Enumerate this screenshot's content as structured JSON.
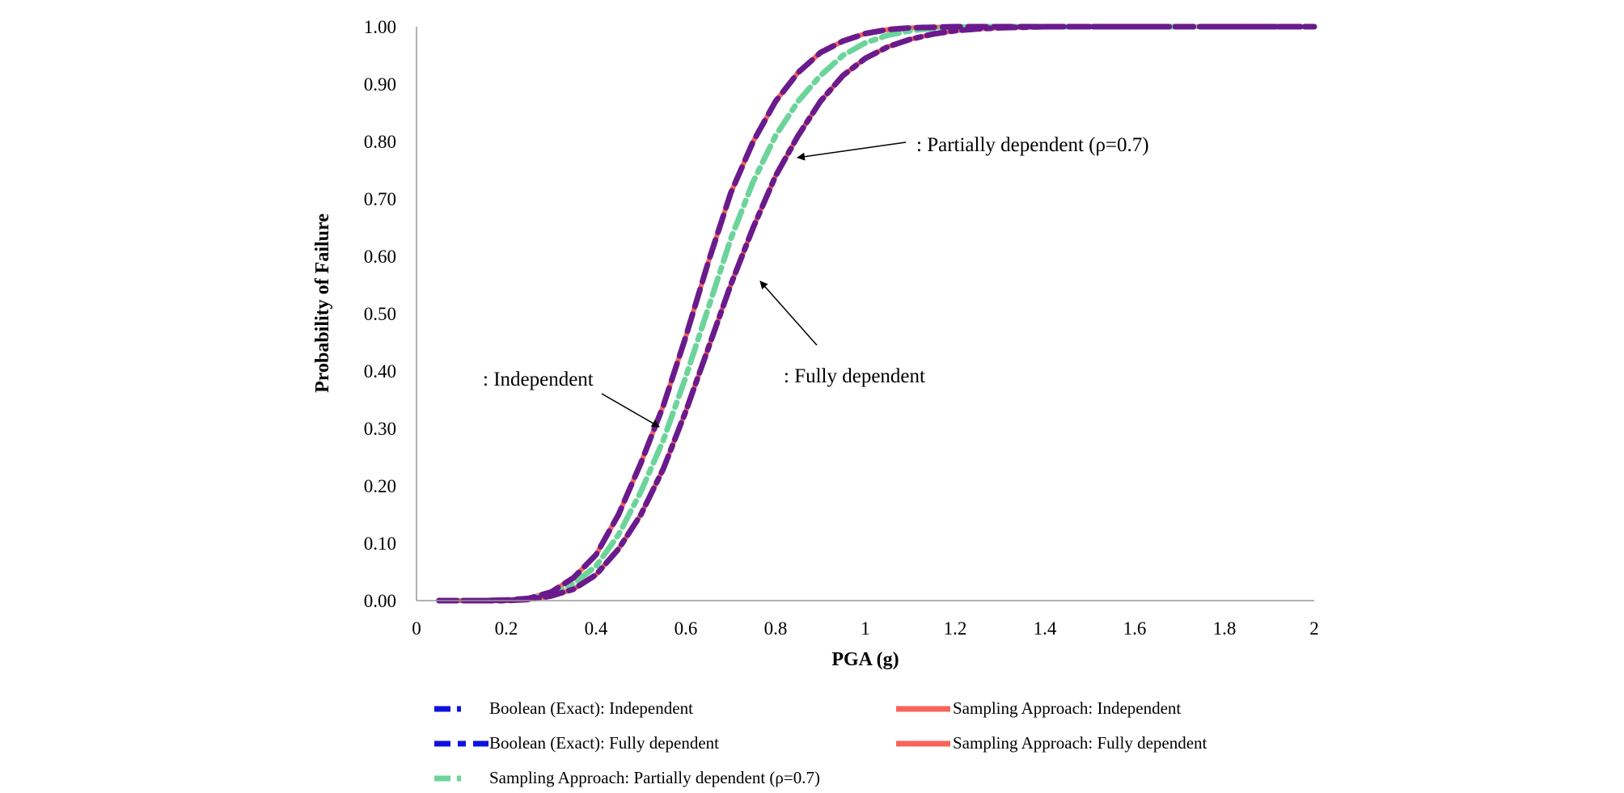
{
  "chart_data": {
    "type": "line",
    "title": "",
    "xlabel": "PGA (g)",
    "ylabel": "Probability  of Failure",
    "xlim": [
      0,
      2
    ],
    "ylim": [
      0,
      1
    ],
    "xticks": [
      "0",
      "0.2",
      "0.4",
      "0.6",
      "0.8",
      "1",
      "1.2",
      "1.4",
      "1.6",
      "1.8",
      "2"
    ],
    "yticks": [
      "0.00",
      "0.10",
      "0.20",
      "0.30",
      "0.40",
      "0.50",
      "0.60",
      "0.70",
      "0.80",
      "0.90",
      "1.00"
    ],
    "x": [
      0.05,
      0.1,
      0.15,
      0.2,
      0.25,
      0.3,
      0.35,
      0.4,
      0.45,
      0.5,
      0.55,
      0.6,
      0.65,
      0.7,
      0.75,
      0.8,
      0.85,
      0.9,
      0.95,
      1.0,
      1.05,
      1.1,
      1.15,
      1.2,
      1.25,
      1.3,
      1.35,
      1.4,
      1.5,
      1.6,
      1.7,
      1.8,
      1.9,
      2.0
    ],
    "series": [
      {
        "name": "Sampling Approach: Independent",
        "color": "#f8645a",
        "style": "solid",
        "values": [
          0.0,
          0.0,
          0.0,
          0.001,
          0.004,
          0.015,
          0.04,
          0.08,
          0.15,
          0.24,
          0.34,
          0.46,
          0.59,
          0.71,
          0.8,
          0.87,
          0.92,
          0.955,
          0.975,
          0.988,
          0.995,
          0.998,
          0.999,
          1.0,
          1.0,
          1.0,
          1.0,
          1.0,
          1.0,
          1.0,
          1.0,
          1.0,
          1.0,
          1.0
        ]
      },
      {
        "name": "Sampling Approach: Fully dependent",
        "color": "#f8645a",
        "style": "solid",
        "values": [
          0.0,
          0.0,
          0.0,
          0.0,
          0.002,
          0.008,
          0.02,
          0.045,
          0.09,
          0.15,
          0.23,
          0.33,
          0.44,
          0.55,
          0.65,
          0.74,
          0.81,
          0.87,
          0.915,
          0.945,
          0.965,
          0.978,
          0.987,
          0.993,
          0.996,
          0.998,
          0.999,
          1.0,
          1.0,
          1.0,
          1.0,
          1.0,
          1.0,
          1.0
        ]
      },
      {
        "name": "Sampling Approach: Partially dependent (ρ=0.7)",
        "color": "#6cd49a",
        "style": "dashdot",
        "values": [
          0.0,
          0.0,
          0.0,
          0.0,
          0.003,
          0.011,
          0.03,
          0.06,
          0.115,
          0.19,
          0.28,
          0.39,
          0.51,
          0.63,
          0.73,
          0.81,
          0.87,
          0.915,
          0.95,
          0.972,
          0.985,
          0.993,
          0.997,
          0.999,
          1.0,
          1.0,
          1.0,
          1.0,
          1.0,
          1.0,
          1.0,
          1.0,
          1.0,
          1.0
        ]
      },
      {
        "name": "Boolean (Exact): Independent",
        "color": "#6a1a8c",
        "style": "longdash",
        "values": [
          0.0,
          0.0,
          0.0,
          0.001,
          0.004,
          0.015,
          0.04,
          0.08,
          0.15,
          0.24,
          0.34,
          0.46,
          0.59,
          0.71,
          0.8,
          0.87,
          0.92,
          0.955,
          0.975,
          0.988,
          0.995,
          0.998,
          0.999,
          1.0,
          1.0,
          1.0,
          1.0,
          1.0,
          1.0,
          1.0,
          1.0,
          1.0,
          1.0,
          1.0
        ]
      },
      {
        "name": "Boolean (Exact): Fully dependent",
        "color": "#6a1a8c",
        "style": "dashdot",
        "values": [
          0.0,
          0.0,
          0.0,
          0.0,
          0.002,
          0.008,
          0.02,
          0.045,
          0.09,
          0.15,
          0.23,
          0.33,
          0.44,
          0.55,
          0.65,
          0.74,
          0.81,
          0.87,
          0.915,
          0.945,
          0.965,
          0.978,
          0.987,
          0.993,
          0.996,
          0.998,
          0.999,
          1.0,
          1.0,
          1.0,
          1.0,
          1.0,
          1.0,
          1.0
        ]
      }
    ],
    "annotations": [
      {
        "text": ": Partially  dependent (ρ=0.7)",
        "points_to_x": 0.845,
        "points_to_y": 0.77
      },
      {
        "text": ": Fully  dependent",
        "points_to_x": 0.75,
        "points_to_y": 0.56
      },
      {
        "text": ": Independent",
        "points_to_x": 0.535,
        "points_to_y": 0.3
      }
    ],
    "legend": {
      "placement": "bottom",
      "entries": [
        {
          "label": "Boolean (Exact): Independent",
          "color": "#1010e0",
          "style": "longdash"
        },
        {
          "label": "Sampling Approach: Independent",
          "color": "#f8645a",
          "style": "solid"
        },
        {
          "label": "Boolean (Exact): Fully dependent",
          "color": "#1010e0",
          "style": "dashdot"
        },
        {
          "label": "Sampling Approach: Fully dependent",
          "color": "#f8645a",
          "style": "solid"
        },
        {
          "label": "Sampling  Approach: Partially  dependent (ρ=0.7)",
          "color": "#6cd49a",
          "style": "longdash"
        }
      ]
    }
  }
}
